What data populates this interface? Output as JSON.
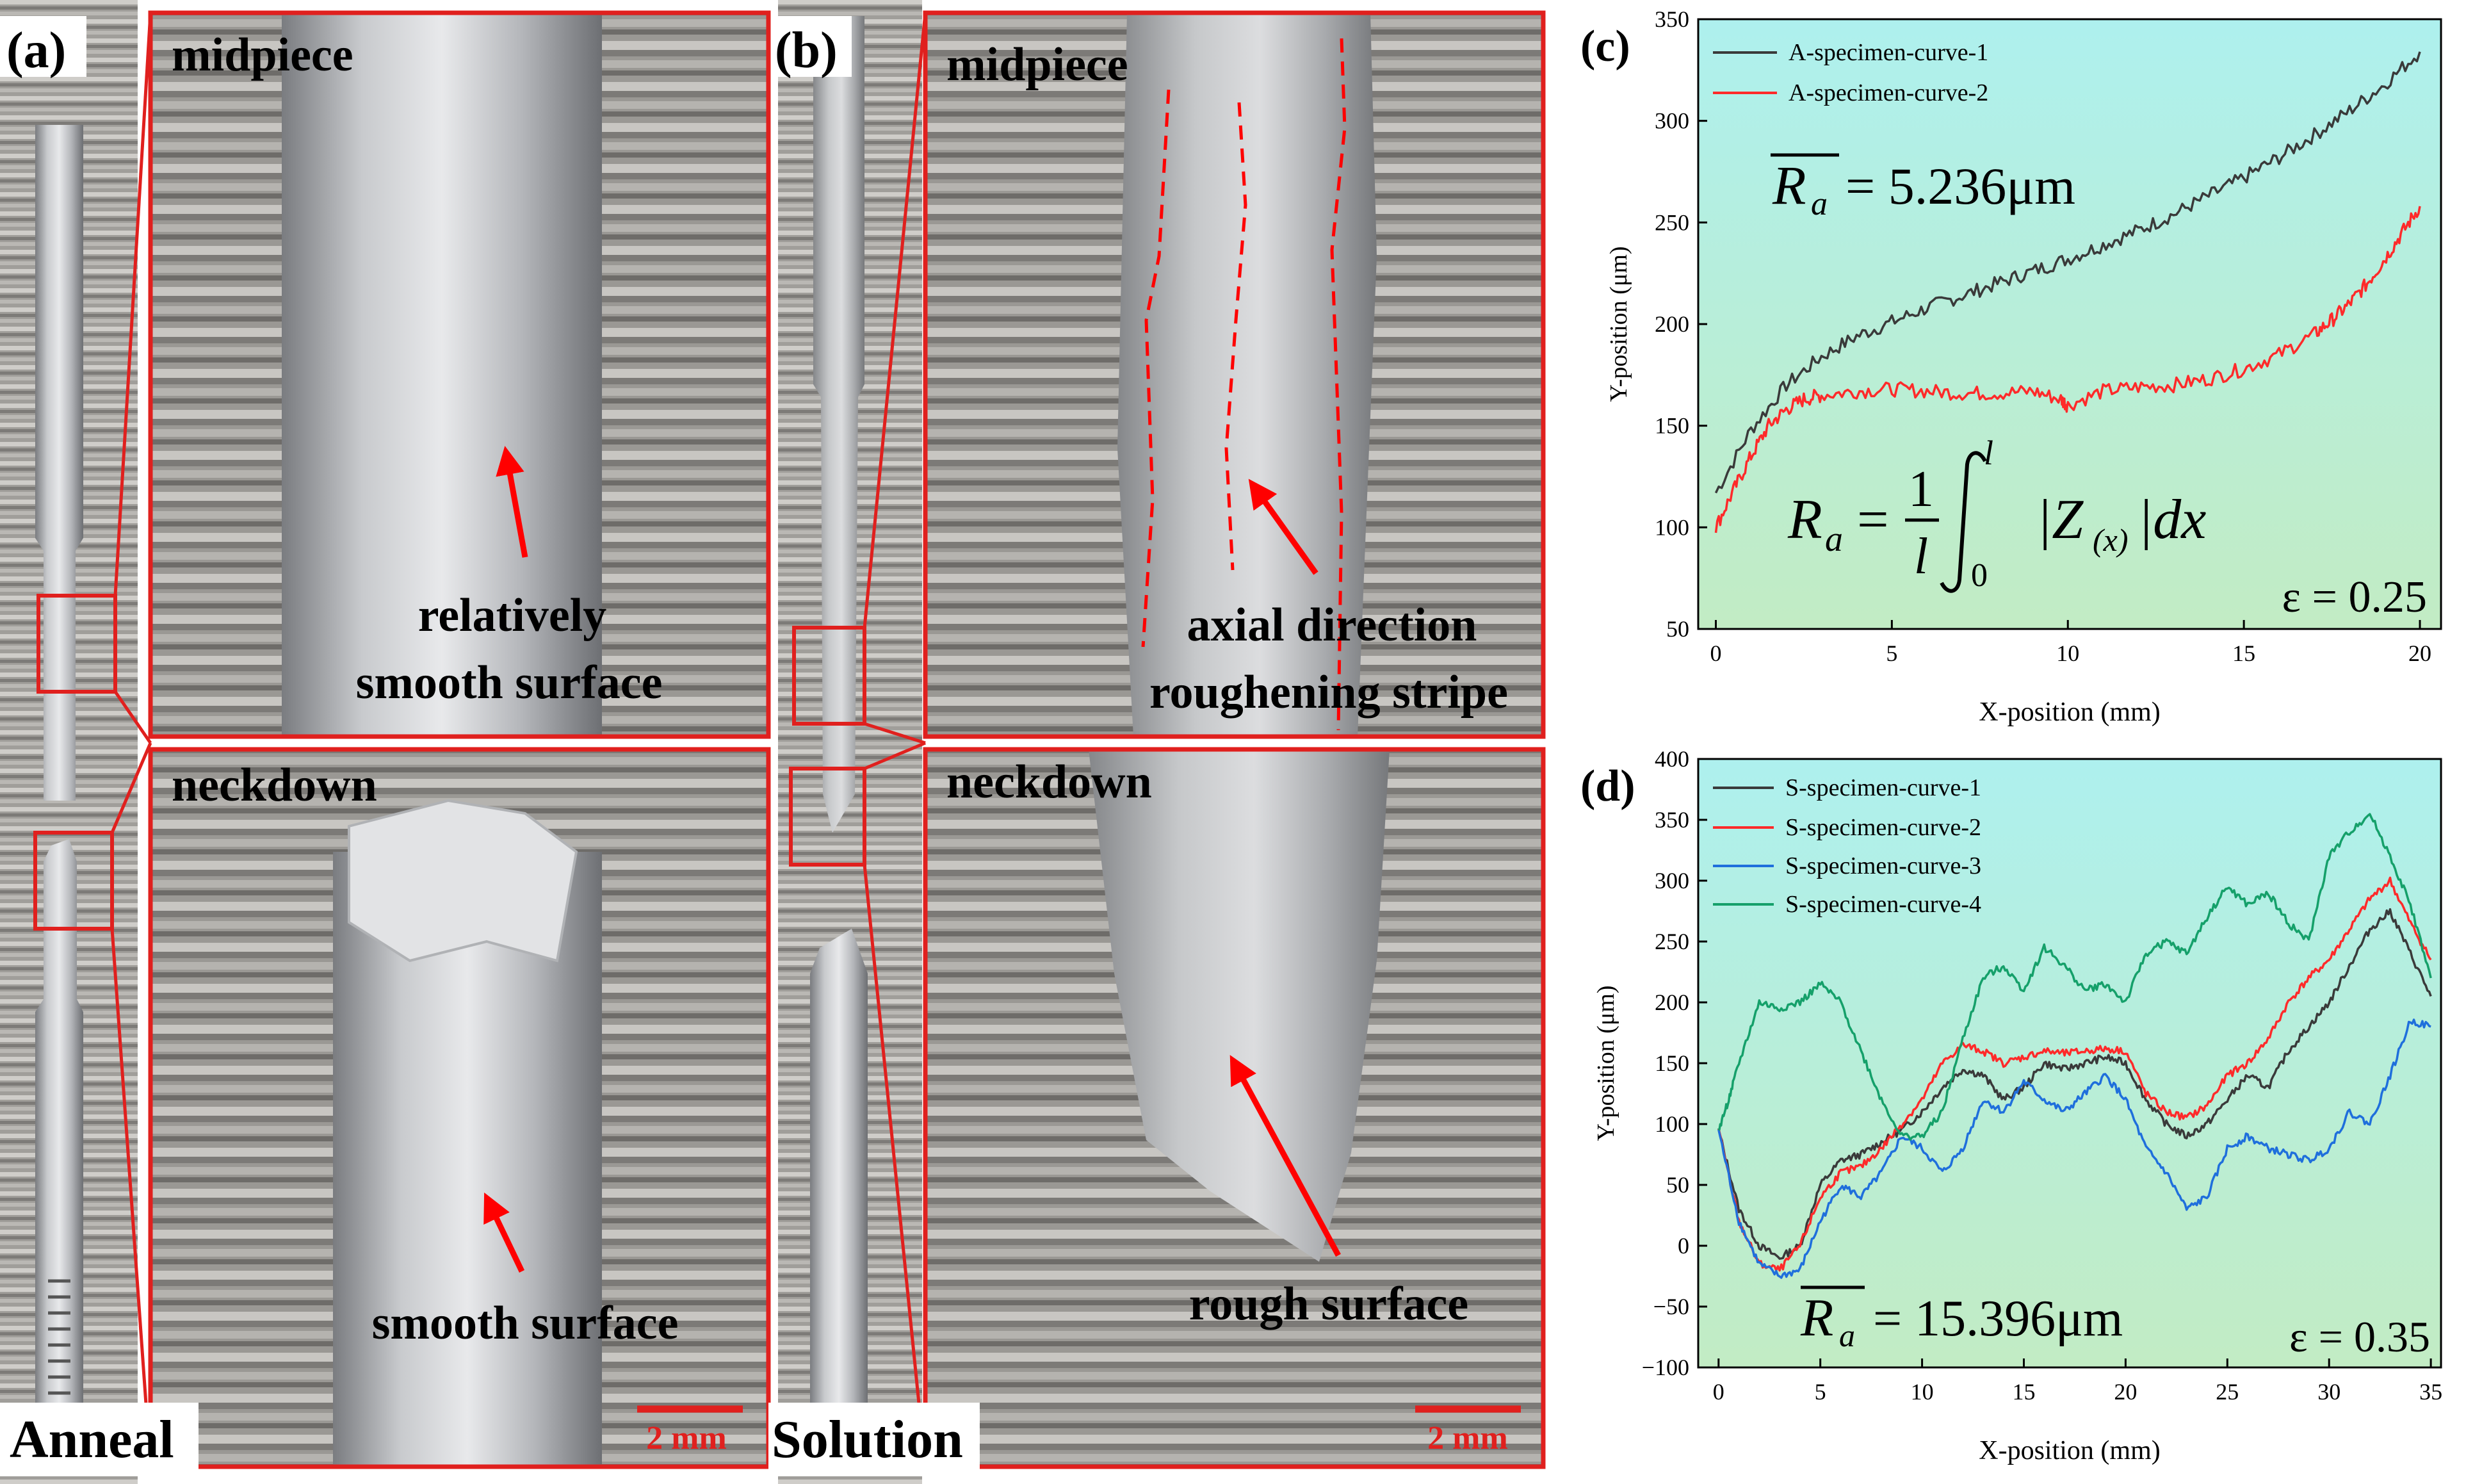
{
  "panel_a": {
    "tag": "(a)",
    "condition": "Anneal",
    "top_label": "midpiece",
    "top_annotation_line1": "relatively",
    "top_annotation_line2": "smooth surface",
    "bottom_label": "neckdown",
    "bottom_annotation": "smooth surface",
    "scale_bar": "2 mm"
  },
  "panel_b": {
    "tag": "(b)",
    "condition": "Solution",
    "top_label": "midpiece",
    "top_annotation_line1": "axial direction",
    "top_annotation_line2": "roughening  stripe",
    "bottom_label": "neckdown",
    "bottom_annotation": "rough surface",
    "scale_bar": "2 mm"
  },
  "colors": {
    "frame_red": "#e0201e",
    "annot_red": "#ff0000",
    "plot_bg_top": "#aef0ee",
    "plot_bg_bottom": "#c2ecc4",
    "series_black": "#3a3a3a",
    "series_red": "#ff2a2a",
    "series_blue": "#1f6fdc",
    "series_green": "#15a06a"
  },
  "chart_data": [
    {
      "tag": "(c)",
      "type": "line",
      "xlabel": "X-position (mm)",
      "ylabel": "Y-position (μm)",
      "xlim": [
        -0.5,
        20.6
      ],
      "ylim": [
        50,
        350
      ],
      "xticks": [
        "0",
        "5",
        "10",
        "15",
        "20"
      ],
      "yticks": [
        "50",
        "100",
        "150",
        "200",
        "250",
        "300",
        "350"
      ],
      "annotation_mean": "= 5.236μm",
      "annotation_mean_symbol": "R",
      "annotation_mean_sub": "a",
      "annotation_strain": "ε = 0.25",
      "formula": {
        "lhs": "R",
        "lhs_sub": "a",
        "eq": "=",
        "num": "1",
        "den": "l",
        "int_upper": "l",
        "int_lower": "0",
        "body": "|Z",
        "body_sub": "(x)",
        "tail": "|dx"
      },
      "series": [
        {
          "name": "A-specimen-curve-1",
          "color": "#3a3a3a",
          "x": [
            0,
            1,
            2,
            3,
            4,
            5,
            6,
            7,
            8,
            9,
            10,
            11,
            12,
            13,
            14,
            15,
            16,
            17,
            18,
            19,
            20
          ],
          "y": [
            117,
            148,
            170,
            184,
            194,
            201,
            208,
            214,
            220,
            226,
            232,
            239,
            246,
            254,
            263,
            272,
            282,
            293,
            305,
            318,
            334
          ]
        },
        {
          "name": "A-specimen-curve-2",
          "color": "#ff2a2a",
          "x": [
            0,
            0.5,
            1,
            1.5,
            2,
            2.5,
            3,
            4,
            5,
            6,
            7,
            8,
            9,
            9.8,
            10,
            11,
            12,
            13,
            14,
            15,
            16,
            17,
            17.5,
            18,
            18.5,
            19,
            19.5,
            20
          ],
          "y": [
            100,
            118,
            135,
            150,
            158,
            163,
            165,
            167,
            168,
            167,
            166,
            166,
            167,
            163,
            160,
            167,
            169,
            170,
            173,
            178,
            185,
            195,
            202,
            210,
            220,
            232,
            245,
            258
          ]
        }
      ]
    },
    {
      "tag": "(d)",
      "type": "line",
      "xlabel": "X-position (mm)",
      "ylabel": "Y-position (μm)",
      "xlim": [
        -1,
        35.5
      ],
      "ylim": [
        -100,
        400
      ],
      "xticks": [
        "0",
        "5",
        "10",
        "15",
        "20",
        "25",
        "30",
        "35"
      ],
      "yticks": [
        "−100",
        "−50",
        "0",
        "50",
        "100",
        "150",
        "200",
        "250",
        "300",
        "350",
        "400"
      ],
      "annotation_mean": "= 15.396μm",
      "annotation_mean_symbol": "R",
      "annotation_mean_sub": "a",
      "annotation_strain": "ε = 0.35",
      "series": [
        {
          "name": "S-specimen-curve-1",
          "color": "#3a3a3a",
          "x": [
            0,
            1,
            2,
            3,
            4,
            5,
            6,
            7,
            8,
            9,
            10,
            11,
            12,
            13,
            14,
            15,
            16,
            17,
            18,
            19,
            20,
            21,
            22,
            23,
            24,
            25,
            26,
            27,
            28,
            29,
            30,
            31,
            32,
            33,
            34,
            35
          ],
          "y": [
            95,
            30,
            0,
            -10,
            0,
            50,
            70,
            75,
            85,
            95,
            110,
            130,
            145,
            140,
            120,
            130,
            150,
            145,
            150,
            155,
            150,
            120,
            100,
            90,
            100,
            120,
            140,
            130,
            160,
            180,
            200,
            230,
            260,
            275,
            240,
            205
          ]
        },
        {
          "name": "S-specimen-curve-2",
          "color": "#ff2a2a",
          "x": [
            0,
            1,
            2,
            3,
            4,
            5,
            6,
            7,
            8,
            9,
            10,
            11,
            12,
            13,
            14,
            15,
            16,
            17,
            18,
            19,
            20,
            21,
            22,
            23,
            24,
            25,
            26,
            27,
            28,
            29,
            30,
            31,
            32,
            33,
            34,
            35
          ],
          "y": [
            95,
            20,
            -15,
            -20,
            0,
            40,
            60,
            65,
            80,
            100,
            120,
            150,
            165,
            160,
            150,
            155,
            160,
            158,
            160,
            162,
            160,
            125,
            110,
            105,
            115,
            140,
            150,
            170,
            200,
            220,
            235,
            260,
            285,
            300,
            265,
            235
          ]
        },
        {
          "name": "S-specimen-curve-3",
          "color": "#1f6fdc",
          "x": [
            0,
            1,
            2,
            3,
            4,
            5,
            6,
            7,
            8,
            9,
            10,
            11,
            12,
            13,
            14,
            15,
            16,
            17,
            18,
            19,
            20,
            21,
            22,
            23,
            24,
            25,
            26,
            27,
            28,
            29,
            30,
            31,
            32,
            33,
            34,
            35
          ],
          "y": [
            95,
            20,
            -15,
            -25,
            -20,
            20,
            50,
            40,
            60,
            90,
            80,
            60,
            80,
            120,
            110,
            135,
            120,
            110,
            125,
            140,
            120,
            80,
            60,
            30,
            40,
            80,
            90,
            80,
            75,
            70,
            80,
            110,
            100,
            140,
            185,
            180
          ]
        },
        {
          "name": "S-specimen-curve-4",
          "color": "#15a06a",
          "x": [
            0,
            0.5,
            1,
            2,
            3,
            4,
            5,
            6,
            7,
            8,
            9,
            10,
            11,
            12,
            13,
            14,
            15,
            16,
            17,
            18,
            19,
            20,
            21,
            22,
            23,
            24,
            25,
            26,
            27,
            28,
            29,
            30,
            31,
            32,
            33,
            34,
            35
          ],
          "y": [
            95,
            120,
            150,
            200,
            195,
            200,
            215,
            200,
            160,
            120,
            90,
            90,
            110,
            170,
            220,
            230,
            210,
            245,
            230,
            210,
            215,
            200,
            240,
            250,
            240,
            270,
            295,
            280,
            290,
            265,
            250,
            320,
            340,
            355,
            320,
            280,
            220
          ]
        }
      ]
    }
  ]
}
